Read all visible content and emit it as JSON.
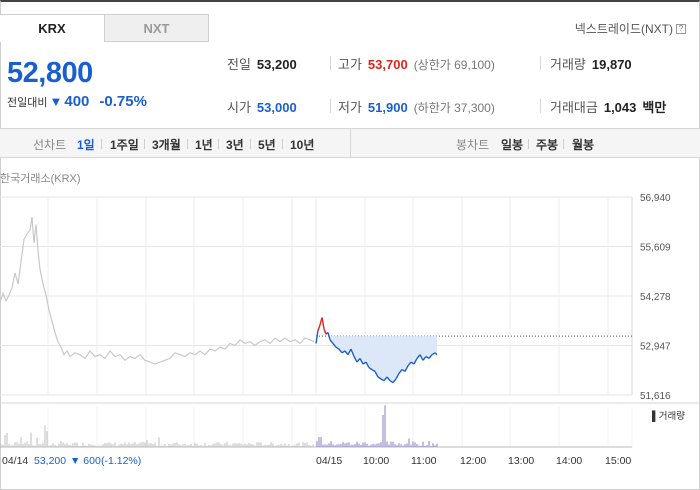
{
  "tabs": {
    "krx": "KRX",
    "nxt": "NXT"
  },
  "nxt_link": {
    "label": "넥스트레이드(NXT)",
    "icon": "help-icon"
  },
  "price": {
    "current": "52,800",
    "change_label": "전일대비",
    "change_value": "400",
    "change_pct": "-0.75%",
    "direction": "down"
  },
  "stats": {
    "prev_close": {
      "label": "전일",
      "value": "53,200"
    },
    "high": {
      "label": "고가",
      "value": "53,700",
      "limit_label": "(상한가 69,100)"
    },
    "volume": {
      "label": "거래량",
      "value": "19,870"
    },
    "open": {
      "label": "시가",
      "value": "53,000"
    },
    "low": {
      "label": "저가",
      "value": "51,900",
      "limit_label": "(하한가 37,300)"
    },
    "amount": {
      "label": "거래대금",
      "value": "1,043",
      "unit": "백만"
    }
  },
  "period": {
    "line_label": "선차트",
    "line_options": [
      "1일",
      "1주일",
      "3개월",
      "1년",
      "3년",
      "5년",
      "10년"
    ],
    "active": "1일",
    "candle_label": "봉차트",
    "candle_options": [
      "일봉",
      "주봉",
      "월봉"
    ]
  },
  "source_label": "한국거래소(KRX)",
  "chart_data": {
    "type": "line",
    "y_ticks": [
      "56,940",
      "55,609",
      "54,278",
      "52,947",
      "51,616"
    ],
    "ylim": [
      51616,
      56940
    ],
    "reference_price": 53200,
    "x_ticks": [
      "04/14",
      "04/15",
      "10:00",
      "11:00",
      "12:00",
      "13:00",
      "14:00",
      "15:00"
    ],
    "volume_legend": "거래량",
    "previous_day": {
      "label_date": "04/14",
      "close": "53,200",
      "change": "600",
      "change_pct": "(-1.12%)",
      "points": [
        [
          0,
          54100
        ],
        [
          3,
          54350
        ],
        [
          6,
          54150
        ],
        [
          9,
          54300
        ],
        [
          12,
          54500
        ],
        [
          15,
          54900
        ],
        [
          18,
          54600
        ],
        [
          21,
          55200
        ],
        [
          24,
          55800
        ],
        [
          27,
          55950
        ],
        [
          30,
          56050
        ],
        [
          32,
          56400
        ],
        [
          34,
          55700
        ],
        [
          36,
          56200
        ],
        [
          38,
          55500
        ],
        [
          40,
          55000
        ],
        [
          43,
          54600
        ],
        [
          46,
          54300
        ],
        [
          49,
          53900
        ],
        [
          52,
          53600
        ],
        [
          55,
          53300
        ],
        [
          58,
          53050
        ],
        [
          61,
          52900
        ],
        [
          64,
          52700
        ],
        [
          67,
          52800
        ],
        [
          70,
          52650
        ],
        [
          75,
          52750
        ],
        [
          80,
          52700
        ],
        [
          85,
          52600
        ],
        [
          90,
          52800
        ],
        [
          95,
          52650
        ],
        [
          100,
          52700
        ],
        [
          105,
          52600
        ],
        [
          110,
          52800
        ],
        [
          115,
          52650
        ],
        [
          120,
          52700
        ],
        [
          125,
          52550
        ],
        [
          130,
          52650
        ],
        [
          135,
          52600
        ],
        [
          140,
          52700
        ],
        [
          145,
          52550
        ],
        [
          150,
          52500
        ],
        [
          155,
          52450
        ],
        [
          160,
          52500
        ],
        [
          165,
          52550
        ],
        [
          170,
          52600
        ],
        [
          175,
          52750
        ],
        [
          180,
          52700
        ],
        [
          185,
          52650
        ],
        [
          190,
          52750
        ],
        [
          195,
          52700
        ],
        [
          200,
          52800
        ],
        [
          205,
          52700
        ],
        [
          210,
          52850
        ],
        [
          215,
          52800
        ],
        [
          220,
          52900
        ],
        [
          225,
          52850
        ],
        [
          230,
          53000
        ],
        [
          235,
          52950
        ],
        [
          240,
          53100
        ],
        [
          245,
          53000
        ],
        [
          250,
          53050
        ],
        [
          255,
          52950
        ],
        [
          260,
          53050
        ],
        [
          265,
          53100
        ],
        [
          270,
          53000
        ],
        [
          275,
          53150
        ],
        [
          280,
          53050
        ],
        [
          285,
          53150
        ],
        [
          290,
          53050
        ],
        [
          295,
          53100
        ],
        [
          300,
          53000
        ],
        [
          305,
          53150
        ],
        [
          310,
          53100
        ],
        [
          314,
          53050
        ]
      ]
    },
    "today": {
      "points": [
        [
          316,
          53000
        ],
        [
          318,
          53350
        ],
        [
          320,
          53500
        ],
        [
          322,
          53700
        ],
        [
          324,
          53400
        ],
        [
          326,
          53250
        ],
        [
          328,
          53300
        ],
        [
          330,
          53100
        ],
        [
          333,
          53000
        ],
        [
          336,
          52900
        ],
        [
          339,
          52850
        ],
        [
          342,
          52750
        ],
        [
          345,
          52800
        ],
        [
          348,
          52700
        ],
        [
          351,
          52850
        ],
        [
          354,
          52650
        ],
        [
          357,
          52500
        ],
        [
          360,
          52600
        ],
        [
          363,
          52450
        ],
        [
          366,
          52500
        ],
        [
          369,
          52350
        ],
        [
          372,
          52300
        ],
        [
          375,
          52250
        ],
        [
          378,
          52100
        ],
        [
          381,
          52050
        ],
        [
          384,
          52000
        ],
        [
          387,
          52100
        ],
        [
          390,
          52000
        ],
        [
          393,
          51950
        ],
        [
          396,
          52050
        ],
        [
          399,
          52200
        ],
        [
          402,
          52300
        ],
        [
          405,
          52250
        ],
        [
          408,
          52400
        ],
        [
          411,
          52500
        ],
        [
          414,
          52450
        ],
        [
          417,
          52600
        ],
        [
          420,
          52700
        ],
        [
          423,
          52550
        ],
        [
          426,
          52650
        ],
        [
          429,
          52600
        ],
        [
          432,
          52700
        ],
        [
          435,
          52750
        ],
        [
          437,
          52700
        ]
      ]
    }
  },
  "colors": {
    "up": "#e0231b",
    "down": "#1a5fd1",
    "prev_line": "#c8c8c8",
    "fill": "#dce8f7"
  }
}
